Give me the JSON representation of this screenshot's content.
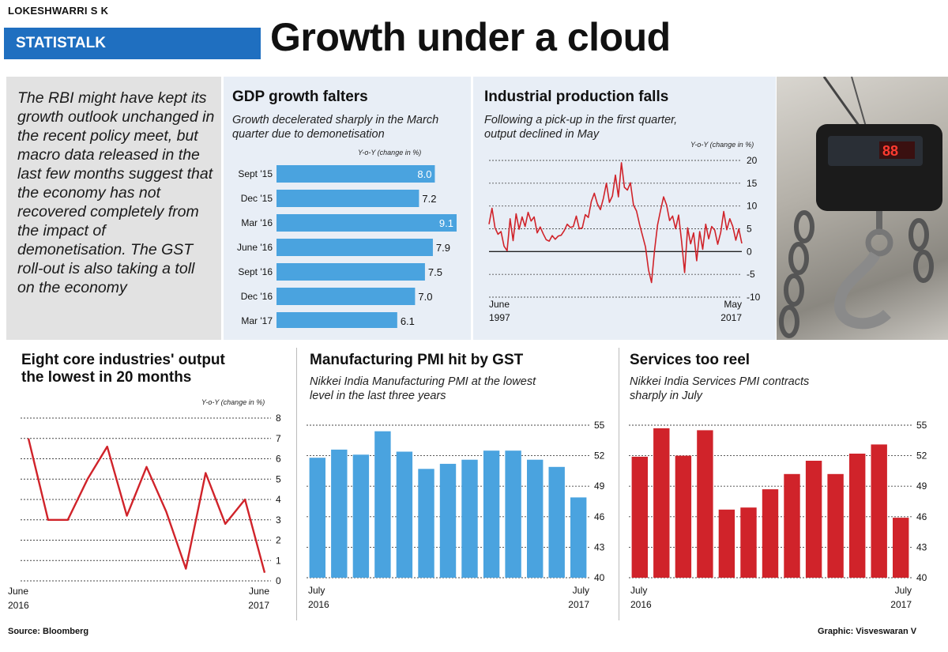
{
  "byline": "LOKESHWARRI S K",
  "section_label": "STATISTALK",
  "headline": "Growth under a cloud",
  "intro_text": "The RBI might have kept its growth outlook unchanged in the recent policy meet, but macro data released in the last few months suggest that the economy has not recovered completely from the impact of demonetisation. The GST roll-out is also taking a toll on the economy",
  "colors": {
    "blue_bar": "#4aa3df",
    "red": "#d0232a",
    "section_blue": "#1f6fc0",
    "panel_bg": "#e8eef6"
  },
  "photo": {
    "icon": "hanging-weighing-scale-photo",
    "display_reading": "88"
  },
  "footer": {
    "source": "Source: Bloomberg",
    "credit": "Graphic: Visveswaran V"
  },
  "chart_data": [
    {
      "type": "bar",
      "orientation": "horizontal",
      "title": "GDP growth falters",
      "subtitle": "Growth decelerated sharply in the March quarter due to demonetisation",
      "unit_label": "Y-o-Y (change in %)",
      "categories": [
        "Sept '15",
        "Dec '15",
        "Mar '16",
        "June '16",
        "Sept '16",
        "Dec '16",
        "Mar '17"
      ],
      "values": [
        8.0,
        7.2,
        9.1,
        7.9,
        7.5,
        7.0,
        6.1
      ],
      "value_labels": [
        "8.0",
        "7.2",
        "9.1",
        "7.9",
        "7.5",
        "7.0",
        "6.1"
      ],
      "xlim": [
        0,
        9.1
      ]
    },
    {
      "type": "line",
      "title": "Industrial production falls",
      "subtitle": "Following a pick-up in the first quarter, output declined in May",
      "unit_label": "Y-o-Y (change in %)",
      "x_start_label": [
        "June",
        "1997"
      ],
      "x_end_label": [
        "May",
        "2017"
      ],
      "yticks": [
        20,
        15,
        10,
        5,
        0,
        -5,
        -10
      ],
      "ylim": [
        -10,
        20
      ],
      "grid": true,
      "values": [
        6.0,
        9.5,
        5.2,
        3.8,
        4.4,
        1.2,
        0.2,
        7.2,
        2.4,
        8.3,
        4.9,
        7.6,
        5.5,
        8.6,
        6.7,
        7.6,
        4.1,
        5.4,
        3.9,
        2.6,
        2.3,
        3.5,
        2.7,
        3.4,
        3.6,
        4.6,
        6.0,
        5.3,
        5.5,
        7.8,
        5.0,
        5.2,
        8.1,
        7.5,
        11.0,
        12.8,
        10.5,
        9.2,
        11.7,
        15.0,
        10.8,
        12.2,
        16.8,
        12.0,
        19.5,
        14.1,
        13.5,
        15.1,
        10.2,
        8.9,
        6.0,
        3.5,
        1.0,
        -4.0,
        -6.8,
        0.2,
        5.8,
        9.0,
        12.0,
        10.2,
        6.8,
        7.8,
        5.0,
        8.0,
        2.2,
        -4.6,
        5.2,
        1.7,
        4.1,
        -2.0,
        4.4,
        0.5,
        6.0,
        2.8,
        5.5,
        4.7,
        1.6,
        4.2,
        8.8,
        4.8,
        7.2,
        5.5,
        2.5,
        5.0,
        1.8
      ],
      "series_color": "#d0232a"
    },
    {
      "type": "line",
      "title": "Eight core industries' output the lowest in 20 months",
      "unit_label": "Y-o-Y (change in %)",
      "x_start_label": [
        "June",
        "2016"
      ],
      "x_end_label": [
        "June",
        "2017"
      ],
      "yticks": [
        8,
        7,
        6,
        5,
        4,
        3,
        2,
        1,
        0
      ],
      "ylim": [
        0,
        8
      ],
      "grid": true,
      "values": [
        7.0,
        3.0,
        3.0,
        5.0,
        6.6,
        3.2,
        5.6,
        3.4,
        0.6,
        5.3,
        2.8,
        4.0,
        0.4
      ],
      "series_color": "#d0232a"
    },
    {
      "type": "bar",
      "title": "Manufacturing PMI hit by GST",
      "subtitle": "Nikkei India Manufacturing PMI at the lowest level in the last three years",
      "x_start_label": [
        "July",
        "2016"
      ],
      "x_end_label": [
        "July",
        "2017"
      ],
      "yticks": [
        55,
        52,
        49,
        46,
        43,
        40
      ],
      "ylim": [
        40,
        55
      ],
      "values": [
        51.8,
        52.6,
        52.1,
        54.4,
        52.4,
        50.7,
        51.2,
        51.6,
        52.5,
        52.5,
        51.6,
        50.9,
        47.9
      ],
      "series_color": "#4aa3df"
    },
    {
      "type": "bar",
      "title": "Services too reel",
      "subtitle": "Nikkei India Services PMI contracts sharply in July",
      "x_start_label": [
        "July",
        "2016"
      ],
      "x_end_label": [
        "July",
        "2017"
      ],
      "yticks": [
        55,
        52,
        49,
        46,
        43,
        40
      ],
      "ylim": [
        40,
        55
      ],
      "values": [
        51.9,
        54.7,
        52.0,
        54.5,
        46.7,
        46.9,
        48.7,
        50.2,
        51.5,
        50.2,
        52.2,
        53.1,
        45.9
      ],
      "series_color": "#d0232a"
    }
  ]
}
